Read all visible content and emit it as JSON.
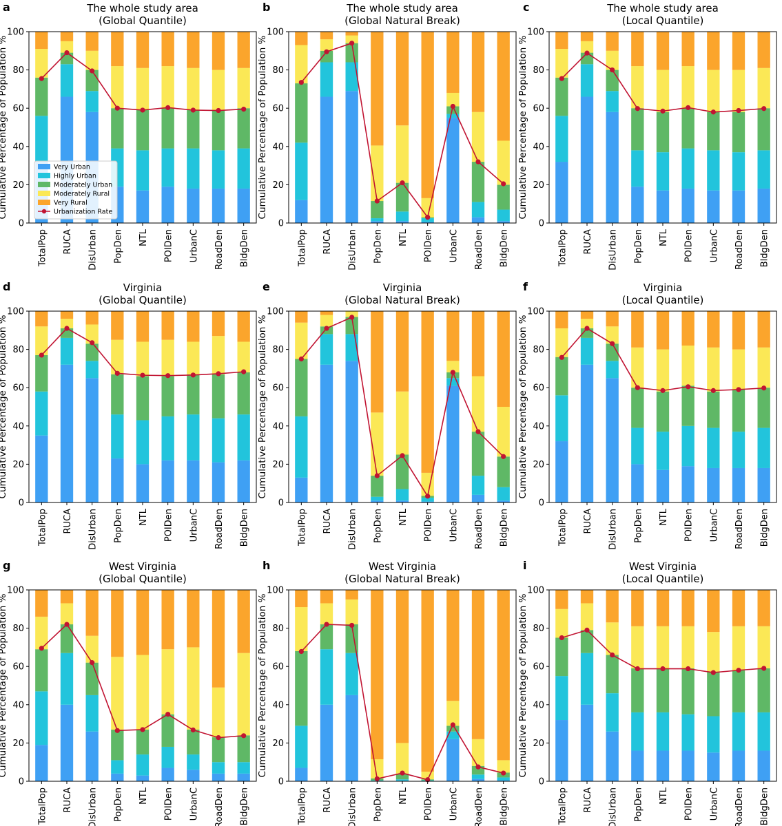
{
  "legend": {
    "placement": "lower-left of panel a",
    "entries": [
      "Very Urban",
      "Highly Urban",
      "Moderately Urban",
      "Moderately Rural",
      "Very Rural",
      "Urbanization Rate"
    ]
  },
  "colors": {
    "very_urban": "#3fa0f4",
    "highly_urban": "#22c4dc",
    "moderately_urban": "#5fb866",
    "moderately_rural": "#fbe856",
    "very_rural": "#fba52c",
    "urbanization_rate": "#c11432"
  },
  "chart_data": [
    {
      "type": "bar",
      "stacked": true,
      "panel": "a",
      "title": "The whole study area",
      "subtitle": "(Global Quantile)",
      "xlabel": "",
      "ylabel": "Cumulative Percentage of Population %",
      "ylim": [
        0,
        100
      ],
      "yticks": [
        0,
        20,
        40,
        60,
        80,
        100
      ],
      "categories": [
        "TotalPop",
        "RUCA",
        "DisUrban",
        "PopDen",
        "NTL",
        "POIDen",
        "UrbanC",
        "RoadDen",
        "BldgDen"
      ],
      "series": [
        {
          "name": "Very Urban",
          "values": [
            32,
            66,
            58,
            19,
            17,
            19,
            18,
            18,
            18
          ]
        },
        {
          "name": "Highly Urban",
          "values": [
            24,
            17,
            11,
            20,
            21,
            20,
            21,
            20,
            21
          ]
        },
        {
          "name": "Moderately Urban",
          "values": [
            20,
            6,
            11,
            21,
            21,
            21,
            20,
            21,
            21
          ]
        },
        {
          "name": "Moderately Rural",
          "values": [
            15,
            6,
            10,
            22,
            22,
            22,
            22,
            21,
            21
          ]
        },
        {
          "name": "Very Rural",
          "values": [
            9,
            5,
            10,
            18,
            19,
            18,
            19,
            20,
            19
          ]
        }
      ],
      "line": {
        "name": "Urbanization Rate",
        "values": [
          75.5,
          89,
          79.5,
          60,
          59,
          60.3,
          59,
          58.8,
          59.5
        ]
      }
    },
    {
      "type": "bar",
      "stacked": true,
      "panel": "b",
      "title": "The whole study area",
      "subtitle": "(Global Natural Break)",
      "xlabel": "",
      "ylabel": "Cumulative Percentage of Population %",
      "ylim": [
        0,
        100
      ],
      "yticks": [
        0,
        20,
        40,
        60,
        80,
        100
      ],
      "categories": [
        "TotalPop",
        "RUCA",
        "DisUrban",
        "PopDen",
        "NTL",
        "POIDen",
        "UrbanC",
        "RoadDen",
        "BldgDen"
      ],
      "series": [
        {
          "name": "Very Urban",
          "values": [
            12,
            66,
            69,
            1,
            1,
            0.5,
            55,
            3,
            1
          ]
        },
        {
          "name": "Highly Urban",
          "values": [
            30,
            18,
            15,
            1.5,
            5,
            2,
            2,
            8,
            6
          ]
        },
        {
          "name": "Moderately Urban",
          "values": [
            31,
            6,
            10,
            9,
            15,
            0.5,
            4,
            21,
            13
          ]
        },
        {
          "name": "Moderately Rural",
          "values": [
            20,
            6,
            4,
            29,
            30,
            10,
            7,
            26,
            23
          ]
        },
        {
          "name": "Very Rural",
          "values": [
            7,
            4,
            2,
            59.5,
            49,
            87,
            32,
            42,
            57
          ]
        }
      ],
      "line": {
        "name": "Urbanization Rate",
        "values": [
          73.5,
          89.5,
          94,
          11.5,
          21,
          3,
          61,
          32,
          20.5
        ]
      }
    },
    {
      "type": "bar",
      "stacked": true,
      "panel": "c",
      "title": "The whole study area",
      "subtitle": "(Local Quantile)",
      "xlabel": "",
      "ylabel": "Cumulative Percentage of Population %",
      "ylim": [
        0,
        100
      ],
      "yticks": [
        0,
        20,
        40,
        60,
        80,
        100
      ],
      "categories": [
        "TotalPop",
        "RUCA",
        "DisUrban",
        "PopDen",
        "NTL",
        "POIDen",
        "UrbanC",
        "RoadDen",
        "BldgDen"
      ],
      "series": [
        {
          "name": "Very Urban",
          "values": [
            32,
            66,
            58,
            19,
            17,
            18,
            17,
            17,
            18
          ]
        },
        {
          "name": "Highly Urban",
          "values": [
            24,
            17,
            11,
            19,
            20,
            21,
            21,
            20,
            20
          ]
        },
        {
          "name": "Moderately Urban",
          "values": [
            20,
            6,
            11,
            22,
            21,
            21,
            20,
            21,
            22
          ]
        },
        {
          "name": "Moderately Rural",
          "values": [
            15,
            6,
            10,
            22,
            22,
            22,
            22,
            22,
            21
          ]
        },
        {
          "name": "Very Rural",
          "values": [
            9,
            5,
            10,
            18,
            20,
            18,
            20,
            20,
            19
          ]
        }
      ],
      "line": {
        "name": "Urbanization Rate",
        "values": [
          75.5,
          88.8,
          80,
          59.8,
          58.5,
          60.3,
          58,
          58.8,
          59.8
        ]
      }
    },
    {
      "type": "bar",
      "stacked": true,
      "panel": "d",
      "title": "Virginia",
      "subtitle": "(Global Quantile)",
      "xlabel": "",
      "ylabel": "Cumulative Percentage of Population %",
      "ylim": [
        0,
        100
      ],
      "yticks": [
        0,
        20,
        40,
        60,
        80,
        100
      ],
      "categories": [
        "TotalPop",
        "RUCA",
        "DisUrban",
        "PopDen",
        "NTL",
        "POIDen",
        "UrbanC",
        "RoadDen",
        "BldgDen"
      ],
      "series": [
        {
          "name": "Very Urban",
          "values": [
            35,
            72,
            65,
            23,
            20,
            22,
            22,
            21,
            22
          ]
        },
        {
          "name": "Highly Urban",
          "values": [
            23,
            14,
            9,
            23,
            23,
            23,
            24,
            23,
            24
          ]
        },
        {
          "name": "Moderately Urban",
          "values": [
            19,
            5,
            9,
            21,
            23,
            21,
            21,
            23,
            22
          ]
        },
        {
          "name": "Moderately Rural",
          "values": [
            15,
            5,
            10,
            18,
            18,
            19,
            17,
            20,
            16
          ]
        },
        {
          "name": "Very Rural",
          "values": [
            8,
            4,
            7,
            15,
            16,
            15,
            16,
            13,
            16
          ]
        }
      ],
      "line": {
        "name": "Urbanization Rate",
        "values": [
          77,
          91,
          83.5,
          67.5,
          66.5,
          66.3,
          66.6,
          67.3,
          68.3
        ]
      }
    },
    {
      "type": "bar",
      "stacked": true,
      "panel": "e",
      "title": "Virginia",
      "subtitle": "(Global Natural Break)",
      "xlabel": "",
      "ylabel": "Cumulative Percentage of Population %",
      "ylim": [
        0,
        100
      ],
      "yticks": [
        0,
        20,
        40,
        60,
        80,
        100
      ],
      "categories": [
        "TotalPop",
        "RUCA",
        "DisUrban",
        "PopDen",
        "NTL",
        "POIDen",
        "UrbanC",
        "RoadDen",
        "BldgDen"
      ],
      "series": [
        {
          "name": "Very Urban",
          "values": [
            13,
            72,
            74,
            1,
            1,
            0.5,
            61,
            4,
            1
          ]
        },
        {
          "name": "Highly Urban",
          "values": [
            32,
            16,
            14,
            2,
            6,
            2,
            4,
            10,
            7
          ]
        },
        {
          "name": "Moderately Urban",
          "values": [
            30,
            4,
            9,
            11,
            18,
            1,
            3,
            23,
            16
          ]
        },
        {
          "name": "Moderately Rural",
          "values": [
            19,
            6,
            3,
            33,
            33,
            12,
            6,
            29,
            26
          ]
        },
        {
          "name": "Very Rural",
          "values": [
            6,
            2,
            0,
            53,
            42,
            84.5,
            26,
            34,
            50
          ]
        }
      ],
      "line": {
        "name": "Urbanization Rate",
        "values": [
          75,
          91,
          96.8,
          14,
          24.5,
          3.3,
          68,
          37,
          24
        ]
      }
    },
    {
      "type": "bar",
      "stacked": true,
      "panel": "f",
      "title": "Virginia",
      "subtitle": "(Local Quantile)",
      "xlabel": "",
      "ylabel": "Cumulative Percentage of Population %",
      "ylim": [
        0,
        100
      ],
      "yticks": [
        0,
        20,
        40,
        60,
        80,
        100
      ],
      "categories": [
        "TotalPop",
        "RUCA",
        "DisUrban",
        "PopDen",
        "NTL",
        "POIDen",
        "UrbanC",
        "RoadDen",
        "BldgDen"
      ],
      "series": [
        {
          "name": "Very Urban",
          "values": [
            32,
            72,
            65,
            20,
            17,
            19,
            18,
            18,
            18
          ]
        },
        {
          "name": "Highly Urban",
          "values": [
            24,
            14,
            9,
            19,
            20,
            21,
            21,
            19,
            21
          ]
        },
        {
          "name": "Moderately Urban",
          "values": [
            20,
            5,
            9,
            21,
            21,
            21,
            19,
            22,
            21
          ]
        },
        {
          "name": "Moderately Rural",
          "values": [
            15,
            5,
            9,
            21,
            22,
            21,
            23,
            21,
            21
          ]
        },
        {
          "name": "Very Rural",
          "values": [
            9,
            4,
            8,
            19,
            20,
            18,
            19,
            20,
            19
          ]
        }
      ],
      "line": {
        "name": "Urbanization Rate",
        "values": [
          75.8,
          91,
          83,
          60,
          58.5,
          60.5,
          58.5,
          59,
          59.8
        ]
      }
    },
    {
      "type": "bar",
      "stacked": true,
      "panel": "g",
      "title": "West Virginia",
      "subtitle": "(Global Quantile)",
      "xlabel": "",
      "ylabel": "Cumulative Percentage of Population %",
      "ylim": [
        0,
        100
      ],
      "yticks": [
        0,
        20,
        40,
        60,
        80,
        100
      ],
      "categories": [
        "TotalPop",
        "RUCA",
        "DisUrban",
        "PopDen",
        "NTL",
        "POIDen",
        "UrbanC",
        "RoadDen",
        "BldgDen"
      ],
      "series": [
        {
          "name": "Very Urban",
          "values": [
            19,
            40,
            26,
            4,
            3,
            7,
            6,
            4,
            4
          ]
        },
        {
          "name": "Highly Urban",
          "values": [
            28,
            27,
            19,
            7,
            11,
            11,
            8,
            6,
            6
          ]
        },
        {
          "name": "Moderately Urban",
          "values": [
            22,
            15,
            17,
            16,
            13,
            17,
            13,
            13,
            14
          ]
        },
        {
          "name": "Moderately Rural",
          "values": [
            17,
            11,
            14,
            38,
            39,
            34,
            43,
            26,
            43
          ]
        },
        {
          "name": "Very Rural",
          "values": [
            14,
            7,
            24,
            35,
            34,
            31,
            30,
            51,
            33
          ]
        }
      ],
      "line": {
        "name": "Urbanization Rate",
        "values": [
          69.5,
          82,
          62,
          26.5,
          27,
          35,
          26.8,
          22.8,
          23.8
        ]
      }
    },
    {
      "type": "bar",
      "stacked": true,
      "panel": "h",
      "title": "West Virginia",
      "subtitle": "(Global Natural Break)",
      "xlabel": "",
      "ylabel": "Cumulative Percentage of Population %",
      "ylim": [
        0,
        100
      ],
      "yticks": [
        0,
        20,
        40,
        60,
        80,
        100
      ],
      "categories": [
        "TotalPop",
        "RUCA",
        "DisUrban",
        "PopDen",
        "NTL",
        "POIDen",
        "UrbanC",
        "RoadDen",
        "BldgDen"
      ],
      "series": [
        {
          "name": "Very Urban",
          "values": [
            7,
            40,
            45,
            0.2,
            0.3,
            0.1,
            22,
            1.2,
            0.5
          ]
        },
        {
          "name": "Highly Urban",
          "values": [
            22,
            29,
            22,
            0.3,
            0.7,
            0.4,
            4,
            2.3,
            1.5
          ]
        },
        {
          "name": "Moderately Urban",
          "values": [
            39,
            13,
            15,
            1,
            3,
            0.5,
            3,
            4.5,
            2.5
          ]
        },
        {
          "name": "Moderately Rural",
          "values": [
            23,
            11,
            13,
            10,
            16,
            4,
            13,
            14,
            6.5
          ]
        },
        {
          "name": "Very Rural",
          "values": [
            9,
            7,
            5,
            88.5,
            80,
            95,
            58,
            78,
            89
          ]
        }
      ],
      "line": {
        "name": "Urbanization Rate",
        "values": [
          67.8,
          82,
          81.5,
          1.3,
          4.3,
          0.8,
          29.5,
          7.5,
          4.3
        ]
      }
    },
    {
      "type": "bar",
      "stacked": true,
      "panel": "i",
      "title": "West Virginia",
      "subtitle": "(Local Quantile)",
      "xlabel": "",
      "ylabel": "Cumulative Percentage of Population %",
      "ylim": [
        0,
        100
      ],
      "yticks": [
        0,
        20,
        40,
        60,
        80,
        100
      ],
      "categories": [
        "TotalPop",
        "RUCA",
        "DisUrban",
        "PopDen",
        "NTL",
        "POIDen",
        "UrbanC",
        "RoadDen",
        "BldgDen"
      ],
      "series": [
        {
          "name": "Very Urban",
          "values": [
            32,
            40,
            26,
            16,
            16,
            16,
            15,
            16,
            16
          ]
        },
        {
          "name": "Highly Urban",
          "values": [
            23,
            27,
            20,
            20,
            20,
            19,
            19,
            20,
            20
          ]
        },
        {
          "name": "Moderately Urban",
          "values": [
            20,
            12,
            20,
            23,
            23,
            24,
            23,
            22,
            23
          ]
        },
        {
          "name": "Moderately Rural",
          "values": [
            15,
            14,
            17,
            22,
            22,
            22,
            21,
            23,
            22
          ]
        },
        {
          "name": "Very Rural",
          "values": [
            10,
            7,
            17,
            19,
            19,
            19,
            22,
            19,
            19
          ]
        }
      ],
      "line": {
        "name": "Urbanization Rate",
        "values": [
          75,
          79,
          66,
          58.8,
          58.8,
          58.8,
          56.8,
          58,
          59
        ]
      }
    }
  ]
}
